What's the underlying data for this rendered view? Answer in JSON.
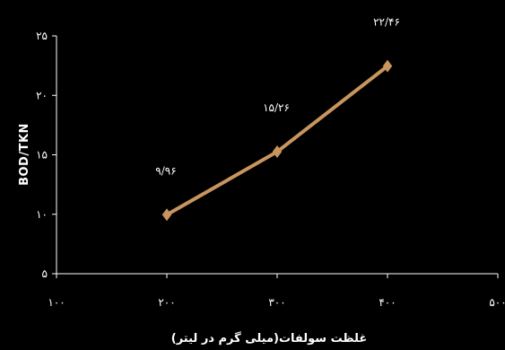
{
  "chart_data": {
    "type": "line",
    "x": [
      200,
      300,
      400
    ],
    "series": [
      {
        "values": [
          9.96,
          15.26,
          22.46
        ],
        "labels": [
          "۹/۹۶",
          "۱۵/۲۶",
          "۲۲/۴۶"
        ]
      }
    ],
    "xlim": [
      100,
      500
    ],
    "ylim": [
      5,
      25
    ],
    "x_ticks": [
      100,
      200,
      300,
      400,
      500
    ],
    "x_tick_labels": [
      "۱۰۰",
      "۲۰۰",
      "۳۰۰",
      "۴۰۰",
      "۵۰۰"
    ],
    "y_ticks": [
      5,
      10,
      15,
      20,
      25
    ],
    "y_tick_labels": [
      "۵",
      "۱۰",
      "۱۵",
      "۲۰",
      "۲۵"
    ],
    "xlabel": "غلظت سولفات(میلی گرم در لیتر)",
    "ylabel": "BOD/TKN",
    "grid": false,
    "colors": {
      "background": "#000000",
      "line": "#C8955E",
      "axis": "#ffffff",
      "text": "#ffffff"
    }
  }
}
